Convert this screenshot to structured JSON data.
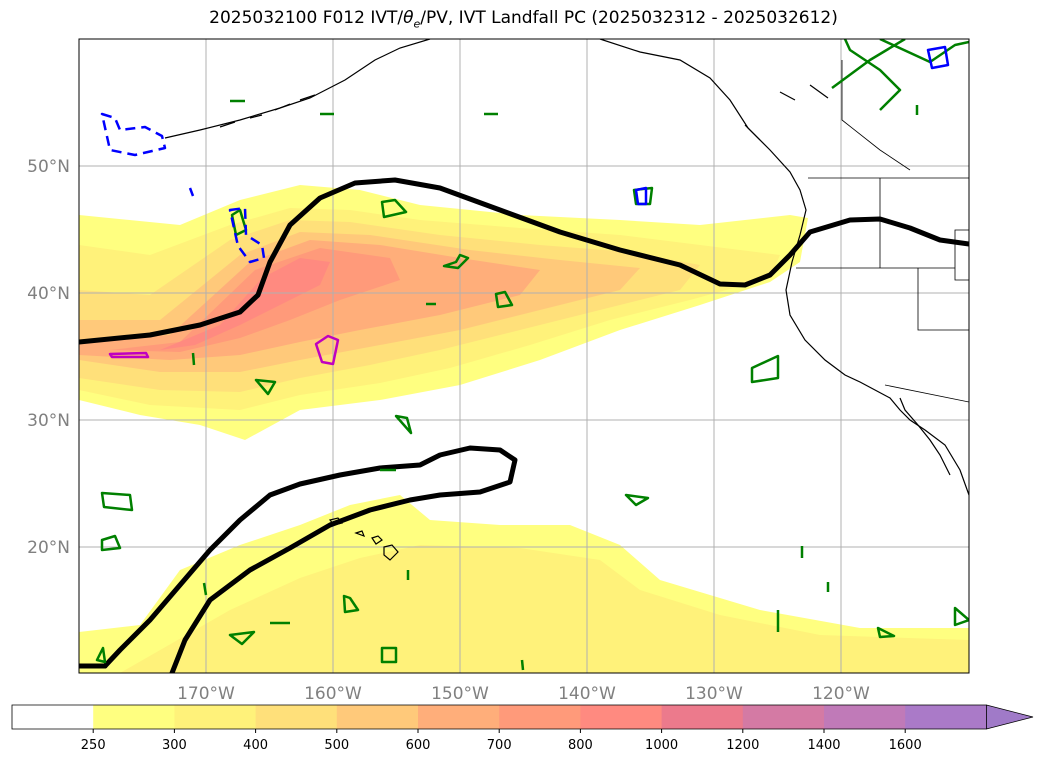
{
  "figure": {
    "title": "2025032100 F012 IVT/θe/PV, IVT Landfall PC (2025032312 - 2025032612)",
    "title_parts": {
      "pre": "2025032100 F012 IVT/",
      "theta": "θ",
      "sub": "e",
      "post": "/PV, IVT Landfall PC (2025032312 - 2025032612)"
    }
  },
  "map": {
    "projection": "PlateCarree",
    "lon_range": [
      -180,
      -110
    ],
    "lat_range": [
      10,
      60
    ],
    "lon_ticks": [
      {
        "value": -170,
        "label": "170°W"
      },
      {
        "value": -160,
        "label": "160°W"
      },
      {
        "value": -150,
        "label": "150°W"
      },
      {
        "value": -140,
        "label": "140°W"
      },
      {
        "value": -130,
        "label": "130°W"
      },
      {
        "value": -120,
        "label": "120°W"
      }
    ],
    "lat_ticks": [
      {
        "value": 20,
        "label": "20°N"
      },
      {
        "value": 30,
        "label": "30°N"
      },
      {
        "value": 40,
        "label": "40°N"
      },
      {
        "value": 50,
        "label": "50°N"
      }
    ],
    "grid": true
  },
  "colorbar": {
    "levels": [
      "250",
      "300",
      "400",
      "500",
      "600",
      "700",
      "800",
      "1000",
      "1200",
      "1400",
      "1600"
    ],
    "colors": [
      "#ffffff",
      "#ffff80",
      "#fff27a",
      "#ffe07a",
      "#ffc97a",
      "#ffae7a",
      "#ff9a7a",
      "#ff8a80",
      "#ec7a8c",
      "#d47aa4",
      "#c07ab8",
      "#aa7ac8"
    ],
    "extend": "max"
  },
  "chart_data": {
    "type": "heatmap",
    "variable": "IVT",
    "levels": [
      250,
      300,
      400,
      500,
      600,
      700,
      800,
      1000,
      1200,
      1400,
      1600
    ],
    "features": {
      "ivt_plume_axis": [
        [
          -180,
          35
        ],
        [
          -170,
          37
        ],
        [
          -160,
          41
        ],
        [
          -150,
          42
        ],
        [
          -140,
          41
        ],
        [
          -130,
          39
        ],
        [
          -123,
          42
        ]
      ],
      "ivt_max_region": [
        -162,
        41
      ],
      "black_contour_north": [
        [
          -180,
          36
        ],
        [
          -166,
          38
        ],
        [
          -160,
          45
        ],
        [
          -155,
          48.8
        ],
        [
          -140,
          44
        ],
        [
          -130,
          40.5
        ],
        [
          -120,
          45.5
        ],
        [
          -110,
          43.5
        ]
      ],
      "black_contour_south": [
        [
          -173,
          10
        ],
        [
          -165,
          21
        ],
        [
          -157,
          25
        ],
        [
          -148,
          27
        ],
        [
          -146,
          26
        ],
        [
          -150,
          24
        ],
        [
          -160,
          19
        ],
        [
          -172,
          10
        ]
      ]
    },
    "pv_contours_colors": {
      "green": "#008000",
      "blue": "#0000ff",
      "magenta": "#c000c0"
    }
  }
}
